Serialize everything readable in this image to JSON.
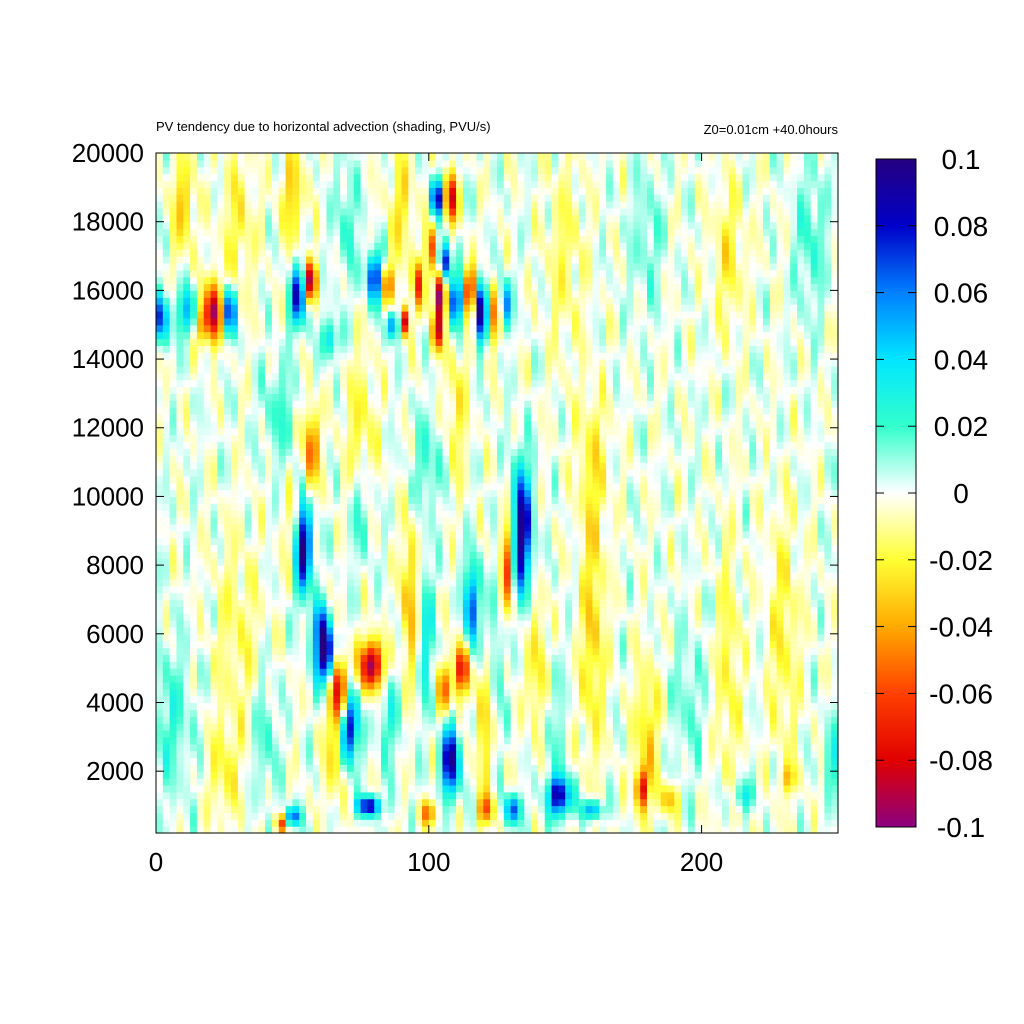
{
  "chart_data": {
    "type": "heatmap",
    "title": "PV tendency due to horizontal advection (shading, PVU/s)",
    "subtitle": "Z0=0.01cm   +40.0hours",
    "xlabel": "",
    "ylabel": "",
    "xlim": [
      0,
      250
    ],
    "ylim": [
      200,
      20000
    ],
    "x_ticks": [
      "0",
      "100",
      "200"
    ],
    "x_tick_values": [
      0,
      100,
      200
    ],
    "y_ticks": [
      "2000",
      "4000",
      "6000",
      "8000",
      "10000",
      "12000",
      "14000",
      "16000",
      "18000",
      "20000"
    ],
    "y_tick_values": [
      2000,
      4000,
      6000,
      8000,
      10000,
      12000,
      14000,
      16000,
      18000,
      20000
    ],
    "colorbar": {
      "range": [
        -0.1,
        0.1
      ],
      "ticks": [
        "0.1",
        "0.08",
        "0.06",
        "0.04",
        "0.02",
        "0",
        "-0.02",
        "-0.04",
        "-0.06",
        "-0.08",
        "-0.1"
      ],
      "tick_values": [
        0.1,
        0.08,
        0.06,
        0.04,
        0.02,
        0,
        -0.02,
        -0.04,
        -0.06,
        -0.08,
        -0.1
      ],
      "colors": [
        "#250080",
        "#0000c8",
        "#0080ff",
        "#00e6ff",
        "#33ffcc",
        "#ffffff",
        "#ffff33",
        "#ffaa00",
        "#ff4000",
        "#e00000",
        "#8c0080"
      ]
    },
    "grid": false,
    "features": [
      {
        "x": 54,
        "y": 8500,
        "value": 0.1,
        "sx": 2.2,
        "sy": 900
      },
      {
        "x": 62,
        "y": 5400,
        "value": 0.1,
        "sx": 2.6,
        "sy": 600
      },
      {
        "x": 71,
        "y": 3300,
        "value": 0.09,
        "sx": 2.2,
        "sy": 700
      },
      {
        "x": 67,
        "y": 4400,
        "value": -0.09,
        "sx": 2.0,
        "sy": 700
      },
      {
        "x": 79,
        "y": 5100,
        "value": -0.1,
        "sx": 3.0,
        "sy": 500
      },
      {
        "x": 134,
        "y": 9000,
        "value": 0.1,
        "sx": 2.6,
        "sy": 1300
      },
      {
        "x": 129,
        "y": 8000,
        "value": -0.06,
        "sx": 1.8,
        "sy": 1100
      },
      {
        "x": 116,
        "y": 6800,
        "value": 0.07,
        "sx": 2.0,
        "sy": 900
      },
      {
        "x": 112,
        "y": 5000,
        "value": -0.09,
        "sx": 1.6,
        "sy": 500
      },
      {
        "x": 108,
        "y": 2300,
        "value": 0.1,
        "sx": 2.2,
        "sy": 700
      },
      {
        "x": 106,
        "y": 4400,
        "value": -0.05,
        "sx": 2.0,
        "sy": 500
      },
      {
        "x": 60,
        "y": 6300,
        "value": 0.05,
        "sx": 2.0,
        "sy": 500
      },
      {
        "x": 57,
        "y": 11400,
        "value": -0.06,
        "sx": 1.8,
        "sy": 800
      },
      {
        "x": 50,
        "y": 9000,
        "value": -0.02,
        "sx": 2.0,
        "sy": 900
      },
      {
        "x": 2,
        "y": 15200,
        "value": 0.07,
        "sx": 2.0,
        "sy": 500
      },
      {
        "x": 11,
        "y": 15400,
        "value": 0.05,
        "sx": 2.0,
        "sy": 500
      },
      {
        "x": 21,
        "y": 15400,
        "value": -0.1,
        "sx": 2.0,
        "sy": 600
      },
      {
        "x": 27,
        "y": 15400,
        "value": 0.08,
        "sx": 1.6,
        "sy": 500
      },
      {
        "x": 17,
        "y": 15000,
        "value": -0.04,
        "sx": 1.5,
        "sy": 400
      },
      {
        "x": 52,
        "y": 15800,
        "value": 0.08,
        "sx": 2.0,
        "sy": 600
      },
      {
        "x": 57,
        "y": 16300,
        "value": -0.09,
        "sx": 1.5,
        "sy": 400
      },
      {
        "x": 64,
        "y": 14600,
        "value": 0.04,
        "sx": 2.2,
        "sy": 400
      },
      {
        "x": 80,
        "y": 16400,
        "value": 0.08,
        "sx": 2.0,
        "sy": 500
      },
      {
        "x": 85,
        "y": 16200,
        "value": -0.06,
        "sx": 1.5,
        "sy": 400
      },
      {
        "x": 87,
        "y": 15000,
        "value": 0.07,
        "sx": 1.5,
        "sy": 300
      },
      {
        "x": 91,
        "y": 15100,
        "value": -0.09,
        "sx": 1.2,
        "sy": 300
      },
      {
        "x": 96,
        "y": 16200,
        "value": -0.06,
        "sx": 1.5,
        "sy": 500
      },
      {
        "x": 101,
        "y": 17200,
        "value": -0.05,
        "sx": 1.5,
        "sy": 500
      },
      {
        "x": 106,
        "y": 16800,
        "value": 0.09,
        "sx": 1.5,
        "sy": 400
      },
      {
        "x": 103,
        "y": 18700,
        "value": 0.09,
        "sx": 1.5,
        "sy": 400
      },
      {
        "x": 108,
        "y": 18700,
        "value": -0.09,
        "sx": 1.5,
        "sy": 500
      },
      {
        "x": 104,
        "y": 15900,
        "value": -0.1,
        "sx": 1.5,
        "sy": 500
      },
      {
        "x": 103,
        "y": 14800,
        "value": -0.08,
        "sx": 1.3,
        "sy": 400
      },
      {
        "x": 110,
        "y": 15700,
        "value": 0.09,
        "sx": 1.5,
        "sy": 500
      },
      {
        "x": 115,
        "y": 16000,
        "value": -0.09,
        "sx": 1.5,
        "sy": 500
      },
      {
        "x": 119,
        "y": 15400,
        "value": 0.1,
        "sx": 1.6,
        "sy": 600
      },
      {
        "x": 124,
        "y": 15300,
        "value": -0.05,
        "sx": 1.5,
        "sy": 600
      },
      {
        "x": 128,
        "y": 15600,
        "value": 0.06,
        "sx": 1.5,
        "sy": 500
      },
      {
        "x": 50,
        "y": 700,
        "value": 0.07,
        "sx": 2.0,
        "sy": 200
      },
      {
        "x": 46,
        "y": 500,
        "value": -0.06,
        "sx": 1.5,
        "sy": 200
      },
      {
        "x": 78,
        "y": 1000,
        "value": 0.09,
        "sx": 3.0,
        "sy": 200
      },
      {
        "x": 100,
        "y": 800,
        "value": -0.05,
        "sx": 2.0,
        "sy": 250
      },
      {
        "x": 121,
        "y": 900,
        "value": -0.05,
        "sx": 2.0,
        "sy": 300
      },
      {
        "x": 131,
        "y": 900,
        "value": 0.07,
        "sx": 2.0,
        "sy": 300
      },
      {
        "x": 148,
        "y": 1300,
        "value": 0.09,
        "sx": 3.0,
        "sy": 400
      },
      {
        "x": 160,
        "y": 900,
        "value": 0.06,
        "sx": 2.5,
        "sy": 200
      },
      {
        "x": 178,
        "y": 1500,
        "value": -0.07,
        "sx": 1.5,
        "sy": 400
      },
      {
        "x": 188,
        "y": 1200,
        "value": -0.04,
        "sx": 2.0,
        "sy": 300
      },
      {
        "x": 215,
        "y": 1300,
        "value": 0.03,
        "sx": 3.0,
        "sy": 300
      },
      {
        "x": 232,
        "y": 1800,
        "value": -0.03,
        "sx": 2.0,
        "sy": 300
      },
      {
        "x": 93,
        "y": 7000,
        "value": -0.04,
        "sx": 2.0,
        "sy": 1500
      },
      {
        "x": 99,
        "y": 6000,
        "value": 0.03,
        "sx": 2.0,
        "sy": 1500
      },
      {
        "x": 140,
        "y": 5000,
        "value": -0.03,
        "sx": 2.5,
        "sy": 1500
      },
      {
        "x": 160,
        "y": 6000,
        "value": -0.03,
        "sx": 3.0,
        "sy": 2500
      },
      {
        "x": 180,
        "y": 3000,
        "value": -0.03,
        "sx": 3.0,
        "sy": 1500
      },
      {
        "x": 195,
        "y": 4000,
        "value": 0.015,
        "sx": 4.0,
        "sy": 1500
      },
      {
        "x": 210,
        "y": 5000,
        "value": -0.02,
        "sx": 3.0,
        "sy": 2500
      },
      {
        "x": 230,
        "y": 6000,
        "value": -0.02,
        "sx": 4.0,
        "sy": 2500
      },
      {
        "x": 248,
        "y": 2500,
        "value": 0.03,
        "sx": 2.0,
        "sy": 700
      },
      {
        "x": 5,
        "y": 3500,
        "value": 0.02,
        "sx": 6.0,
        "sy": 1500
      },
      {
        "x": 25,
        "y": 2000,
        "value": -0.02,
        "sx": 4.0,
        "sy": 1000
      },
      {
        "x": 30,
        "y": 6000,
        "value": -0.015,
        "sx": 6.0,
        "sy": 2000
      },
      {
        "x": 40,
        "y": 3000,
        "value": 0.02,
        "sx": 3.0,
        "sy": 1200
      },
      {
        "x": 160,
        "y": 11000,
        "value": -0.02,
        "sx": 4.0,
        "sy": 1500
      },
      {
        "x": 150,
        "y": 17000,
        "value": -0.015,
        "sx": 5.0,
        "sy": 2000
      },
      {
        "x": 180,
        "y": 17500,
        "value": 0.015,
        "sx": 4.0,
        "sy": 1500
      },
      {
        "x": 210,
        "y": 17000,
        "value": -0.02,
        "sx": 4.0,
        "sy": 1500
      },
      {
        "x": 240,
        "y": 17500,
        "value": 0.02,
        "sx": 4.0,
        "sy": 1500
      },
      {
        "x": 10,
        "y": 18500,
        "value": -0.03,
        "sx": 3.0,
        "sy": 1000
      },
      {
        "x": 30,
        "y": 18000,
        "value": -0.02,
        "sx": 4.0,
        "sy": 1500
      },
      {
        "x": 50,
        "y": 18800,
        "value": -0.03,
        "sx": 3.0,
        "sy": 1000
      },
      {
        "x": 70,
        "y": 18000,
        "value": 0.02,
        "sx": 3.0,
        "sy": 1200
      },
      {
        "x": 90,
        "y": 18500,
        "value": -0.025,
        "sx": 3.0,
        "sy": 1200
      },
      {
        "x": 45,
        "y": 12500,
        "value": 0.02,
        "sx": 4.0,
        "sy": 1000
      },
      {
        "x": 75,
        "y": 12000,
        "value": -0.02,
        "sx": 4.0,
        "sy": 1500
      },
      {
        "x": 100,
        "y": 11000,
        "value": 0.02,
        "sx": 4.0,
        "sy": 1000
      },
      {
        "x": 110,
        "y": 12500,
        "value": -0.02,
        "sx": 3.0,
        "sy": 1500
      },
      {
        "x": 75,
        "y": 9500,
        "value": 0.02,
        "sx": 3.0,
        "sy": 1000
      },
      {
        "x": 85,
        "y": 3500,
        "value": 0.025,
        "sx": 2.5,
        "sy": 1000
      },
      {
        "x": 120,
        "y": 3500,
        "value": -0.03,
        "sx": 2.0,
        "sy": 1500
      },
      {
        "x": 125,
        "y": 5500,
        "value": 0.02,
        "sx": 2.0,
        "sy": 1500
      },
      {
        "x": 145,
        "y": 3500,
        "value": 0.015,
        "sx": 3.0,
        "sy": 1500
      },
      {
        "x": 65,
        "y": 2500,
        "value": -0.03,
        "sx": 2.0,
        "sy": 1000
      }
    ]
  }
}
